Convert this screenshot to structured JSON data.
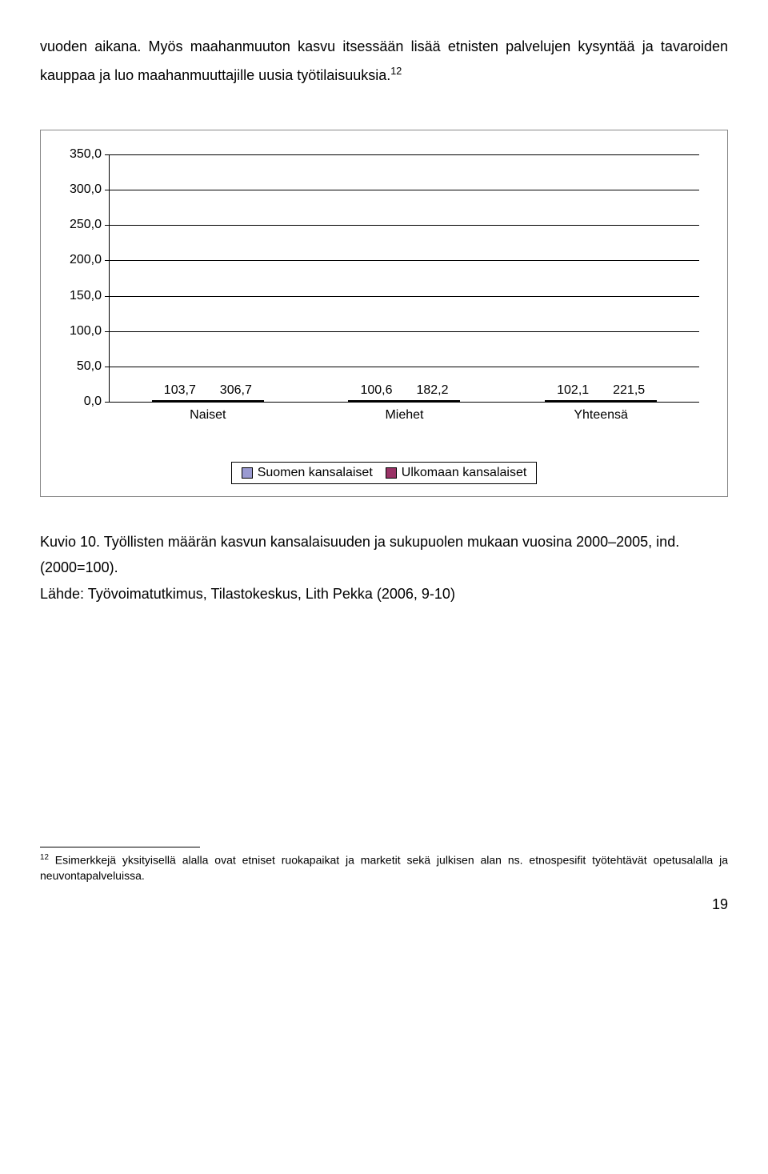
{
  "paragraph_before": "vuoden aikana. Myös maahanmuuton kasvu itsessään lisää etnisten palvelujen kysyntää ja tavaroiden kauppaa ja luo maahanmuuttajille uusia työtilaisuuksia.",
  "sup_12": "12",
  "chart": {
    "ylim_max": 350,
    "yticks": [
      0,
      50,
      100,
      150,
      200,
      250,
      300,
      350
    ],
    "ytick_labels": [
      "0,0",
      "50,0",
      "100,0",
      "150,0",
      "200,0",
      "250,0",
      "300,0",
      "350,0"
    ],
    "series_colors": {
      "suomen": "#9a9ad1",
      "ulkomaan": "#993366"
    },
    "grid_color": "#000000",
    "categories": [
      "Naiset",
      "Miehet",
      "Yhteensä"
    ],
    "series": [
      {
        "name": "Suomen kansalaiset",
        "color_key": "suomen",
        "values": [
          103.7,
          100.6,
          102.1
        ],
        "labels": [
          "103,7",
          "100,6",
          "102,1"
        ]
      },
      {
        "name": "Ulkomaan kansalaiset",
        "color_key": "ulkomaan",
        "values": [
          306.7,
          182.2,
          221.5
        ],
        "labels": [
          "306,7",
          "182,2",
          "221,5"
        ]
      }
    ],
    "legend": {
      "suomen": "Suomen kansalaiset",
      "ulkomaan": "Ulkomaan kansalaiset"
    }
  },
  "caption_line1": "Kuvio 10. Työllisten määrän kasvun kansalaisuuden ja sukupuolen mukaan vuosina 2000–2005, ind. (2000=100).",
  "caption_line2": "Lähde: Työvoimatutkimus, Tilastokeskus, Lith Pekka (2006, 9-10)",
  "footnote": "Esimerkkejä yksityisellä alalla ovat etniset ruokapaikat ja marketit sekä julkisen alan ns. etnospesifit työtehtävät opetusalalla ja neuvontapalveluissa.",
  "footnote_num": "12",
  "page_num": "19"
}
